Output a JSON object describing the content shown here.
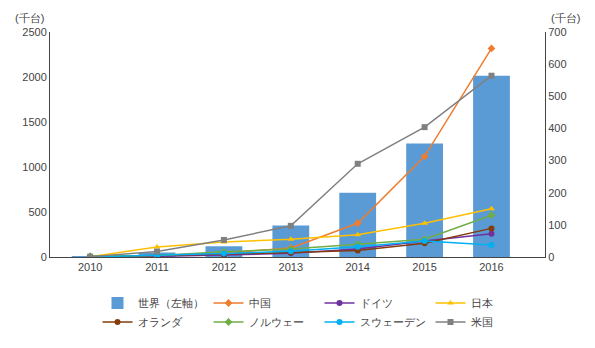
{
  "chart_data": {
    "type": "bar",
    "ylabel": "(千台)",
    "y2label": "(千台)",
    "x": [
      2010,
      2011,
      2012,
      2013,
      2014,
      2015,
      2016
    ],
    "xlim": [
      2009.4,
      2016.8
    ],
    "xticks": [
      2010,
      2011,
      2012,
      2013,
      2014,
      2015,
      2016
    ],
    "ylim": [
      0,
      2500
    ],
    "yticks": [
      0,
      500,
      1000,
      1500,
      2000,
      2500
    ],
    "y2lim": [
      0,
      700
    ],
    "y2ticks": [
      0,
      100,
      200,
      300,
      400,
      500,
      600,
      700
    ],
    "grid": false,
    "legend": "bottom",
    "series": [
      {
        "name": "世界（左軸）",
        "type": "bar",
        "color": "#5B9BD5",
        "values": [
          5,
          49,
          120,
          350,
          715,
          1262,
          2014
        ]
      },
      {
        "name": "中国",
        "type": "line",
        "axis": "y2",
        "marker": "diamond",
        "color": "#ED7D31",
        "values": [
          0.5,
          5,
          12,
          28,
          105,
          313,
          649
        ]
      },
      {
        "name": "ドイツ",
        "type": "line",
        "axis": "y2",
        "marker": "circle",
        "color": "#7030A0",
        "values": [
          1,
          2,
          6,
          12,
          25,
          50,
          72
        ]
      },
      {
        "name": "日本",
        "type": "line",
        "axis": "y2",
        "marker": "triangle-up",
        "color": "#FFC000",
        "values": [
          1,
          31,
          47,
          55,
          69,
          105,
          150
        ]
      },
      {
        "name": "オランダ",
        "type": "line",
        "axis": "y2",
        "marker": "circle",
        "color": "#843C0C",
        "values": [
          0.5,
          4,
          9,
          14,
          20,
          43,
          89
        ]
      },
      {
        "name": "ノルウェー",
        "type": "line",
        "axis": "y2",
        "marker": "diamond",
        "color": "#70AD47",
        "values": [
          3,
          5,
          16,
          25,
          40,
          55,
          130
        ]
      },
      {
        "name": "スウェーデン",
        "type": "line",
        "axis": "y2",
        "marker": "circle",
        "color": "#00B0F0",
        "values": [
          0.3,
          5,
          11,
          18,
          32,
          50,
          37
        ]
      },
      {
        "name": "米国",
        "type": "line",
        "axis": "y2",
        "marker": "square",
        "color": "#808080",
        "values": [
          1,
          17,
          53,
          97,
          290,
          404,
          564
        ]
      }
    ]
  }
}
